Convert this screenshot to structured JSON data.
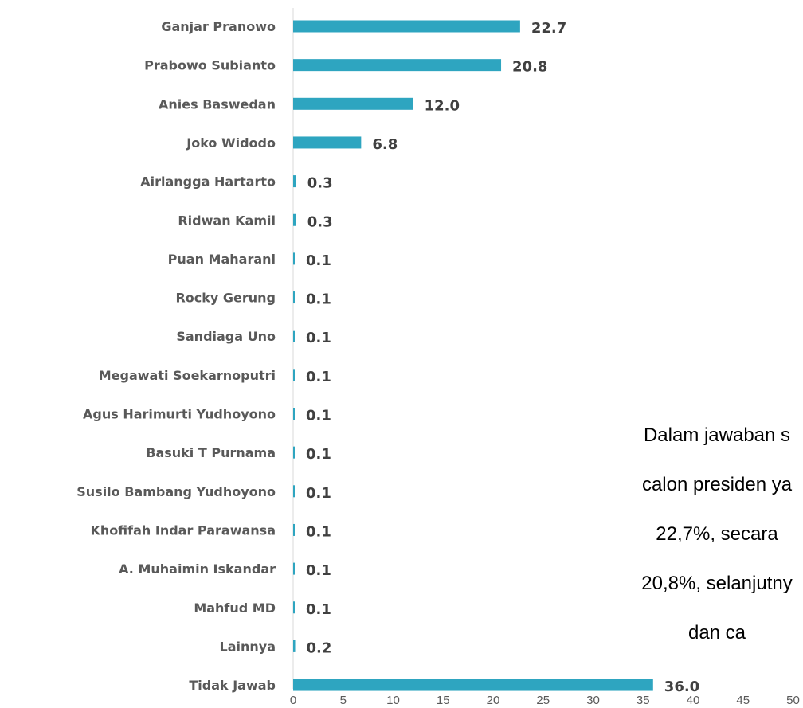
{
  "chart_data": {
    "type": "bar",
    "orientation": "horizontal",
    "categories": [
      "Ganjar Pranowo",
      "Prabowo Subianto",
      "Anies Baswedan",
      "Joko Widodo",
      "Airlangga Hartarto",
      "Ridwan Kamil",
      "Puan Maharani",
      "Rocky Gerung",
      "Sandiaga Uno",
      "Megawati Soekarnoputri",
      "Agus Harimurti Yudhoyono",
      "Basuki T Purnama",
      "Susilo Bambang Yudhoyono",
      "Khofifah Indar Parawansa",
      "A. Muhaimin Iskandar",
      "Mahfud MD",
      "Lainnya",
      "Tidak Jawab"
    ],
    "values": [
      22.7,
      20.8,
      12.0,
      6.8,
      0.3,
      0.3,
      0.1,
      0.1,
      0.1,
      0.1,
      0.1,
      0.1,
      0.1,
      0.1,
      0.1,
      0.1,
      0.2,
      36.0
    ],
    "value_labels": [
      "22.7",
      "20.8",
      "12.0",
      "6.8",
      "0.3",
      "0.3",
      "0.1",
      "0.1",
      "0.1",
      "0.1",
      "0.1",
      "0.1",
      "0.1",
      "0.1",
      "0.1",
      "0.1",
      "0.2",
      "36.0"
    ],
    "xlim": [
      0,
      50
    ],
    "xticks": [
      0,
      5,
      10,
      15,
      20,
      25,
      30,
      35,
      40,
      45,
      50
    ],
    "title": "",
    "xlabel": "",
    "ylabel": "",
    "bar_color": "#2ea5c0",
    "grid": false,
    "legend": "none"
  },
  "annotation": {
    "lines": [
      "Dalam jawaban s",
      "calon presiden ya",
      "22,7%, secara",
      "20,8%, selanjutny",
      "dan ca"
    ]
  }
}
